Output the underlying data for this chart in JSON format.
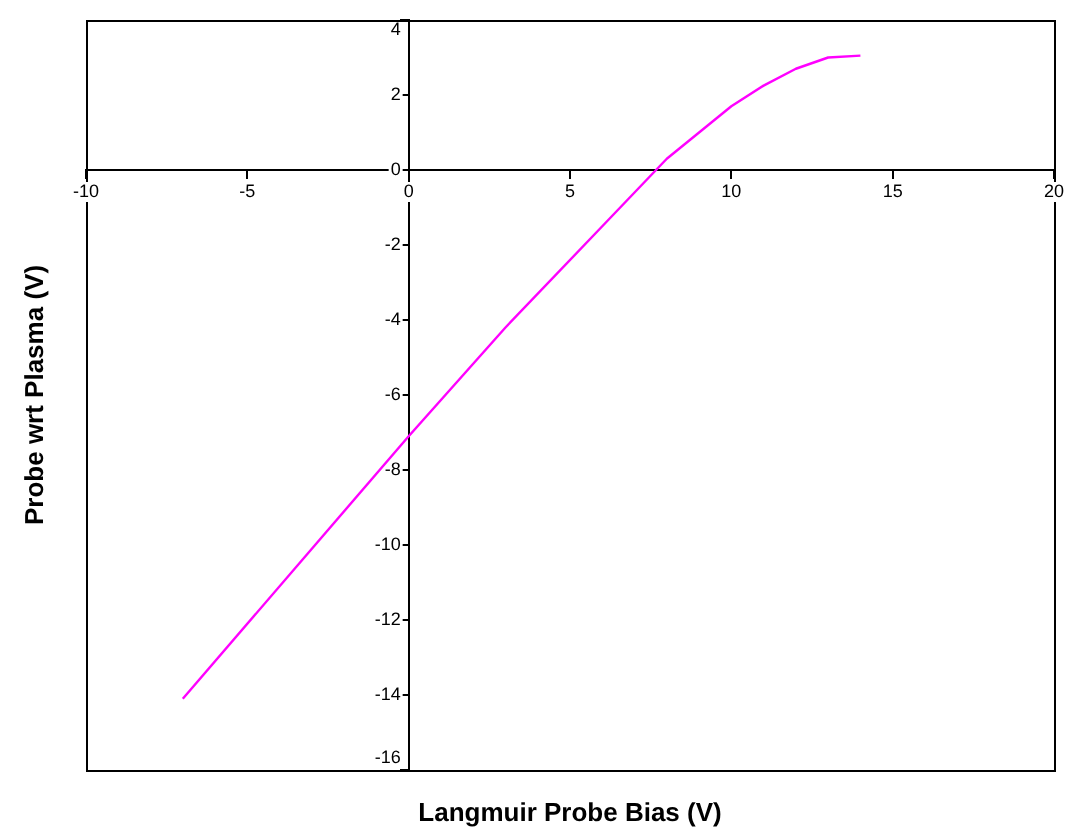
{
  "chart_data": {
    "type": "line",
    "xlabel": "Langmuir Probe Bias (V)",
    "ylabel": "Probe wrt Plasma (V)",
    "x": [
      -7,
      0,
      3,
      6,
      7,
      8,
      9,
      10,
      11,
      12,
      13,
      14
    ],
    "series": [
      {
        "color": "#ff00ff",
        "values": [
          -14.1,
          -7.1,
          -4.2,
          -1.5,
          -0.6,
          0.3,
          1.0,
          1.7,
          2.25,
          2.7,
          3.0,
          3.05
        ]
      }
    ],
    "xlim": [
      -10,
      20
    ],
    "xticks": [
      -10,
      -5,
      0,
      5,
      10,
      15,
      20
    ],
    "ylim": [
      -16,
      4
    ],
    "yticks": [
      -16,
      -14,
      -12,
      -10,
      -8,
      -6,
      -4,
      -2,
      0,
      2,
      4
    ],
    "grid": false,
    "legend": false,
    "marker": "none",
    "line_style": "solid"
  }
}
